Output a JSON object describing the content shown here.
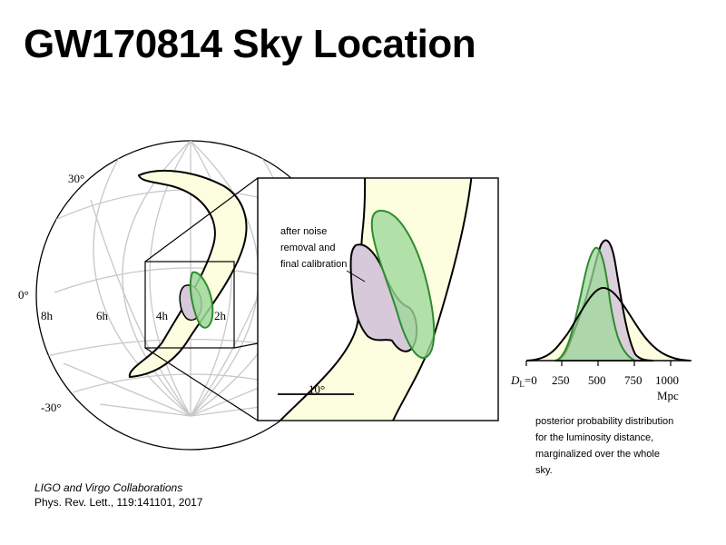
{
  "title": "GW170814 Sky Location",
  "skymap": {
    "dec_labels": [
      "30°",
      "0°",
      "-30°"
    ],
    "ra_labels": [
      "8h",
      "6h",
      "4h",
      "2h"
    ]
  },
  "inset": {
    "annotation_lines": [
      "after noise",
      "removal and",
      "final calibration"
    ],
    "scale_label": "10°"
  },
  "distance_plot": {
    "x_ticks": [
      "250",
      "500",
      "750",
      "1000"
    ],
    "x_first_tick_prefix": "D",
    "x_first_tick_sub": "L",
    "x_first_tick_value": "=0",
    "x_unit": "Mpc",
    "caption_lines": [
      "posterior probability distribution",
      "for the luminosity distance,",
      "marginalized over the whole",
      "sky."
    ]
  },
  "citation": {
    "line1": "LIGO and Virgo Collaborations",
    "line2": "Phys. Rev. Lett., 119:141101, 2017"
  },
  "colors": {
    "yellow_region": "#fdfde0",
    "green_region": "#9ed89a",
    "green_stroke": "#2e8b2e",
    "purple_region": "#d7c9d9",
    "grid": "#c8c8c8"
  }
}
